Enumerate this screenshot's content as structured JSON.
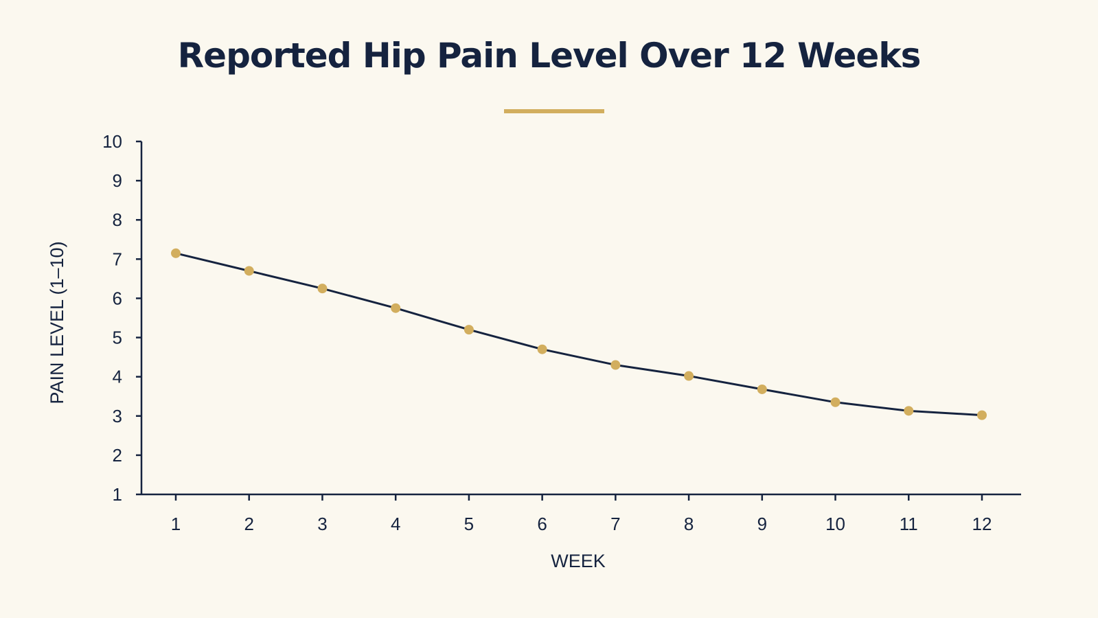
{
  "chart_data": {
    "type": "line",
    "title": "Reported Hip Pain Level Over 12 Weeks",
    "xlabel": "WEEK",
    "ylabel": "PAIN LEVEL (1–10)",
    "x": [
      1,
      2,
      3,
      4,
      5,
      6,
      7,
      8,
      9,
      10,
      11,
      12
    ],
    "x_tick_labels": [
      "1",
      "2",
      "3",
      "4",
      "5",
      "6",
      "7",
      "8",
      "9",
      "10",
      "11",
      "12"
    ],
    "y_tick_labels": [
      "1",
      "2",
      "3",
      "4",
      "5",
      "6",
      "7",
      "8",
      "9",
      "10"
    ],
    "series": [
      {
        "values": [
          7.15,
          6.7,
          6.25,
          5.75,
          5.2,
          4.7,
          4.3,
          4.02,
          3.68,
          3.35,
          3.13,
          3.02
        ]
      }
    ],
    "xlim": [
      1,
      12
    ],
    "ylim": [
      1,
      10
    ],
    "grid": false,
    "legend": "none",
    "colors": {
      "line": "#15233f",
      "marker": "#d2ae5e",
      "axis": "#15233f",
      "text": "#15233f",
      "accent": "#d2ae5e",
      "background": "#fbf8ef"
    }
  }
}
